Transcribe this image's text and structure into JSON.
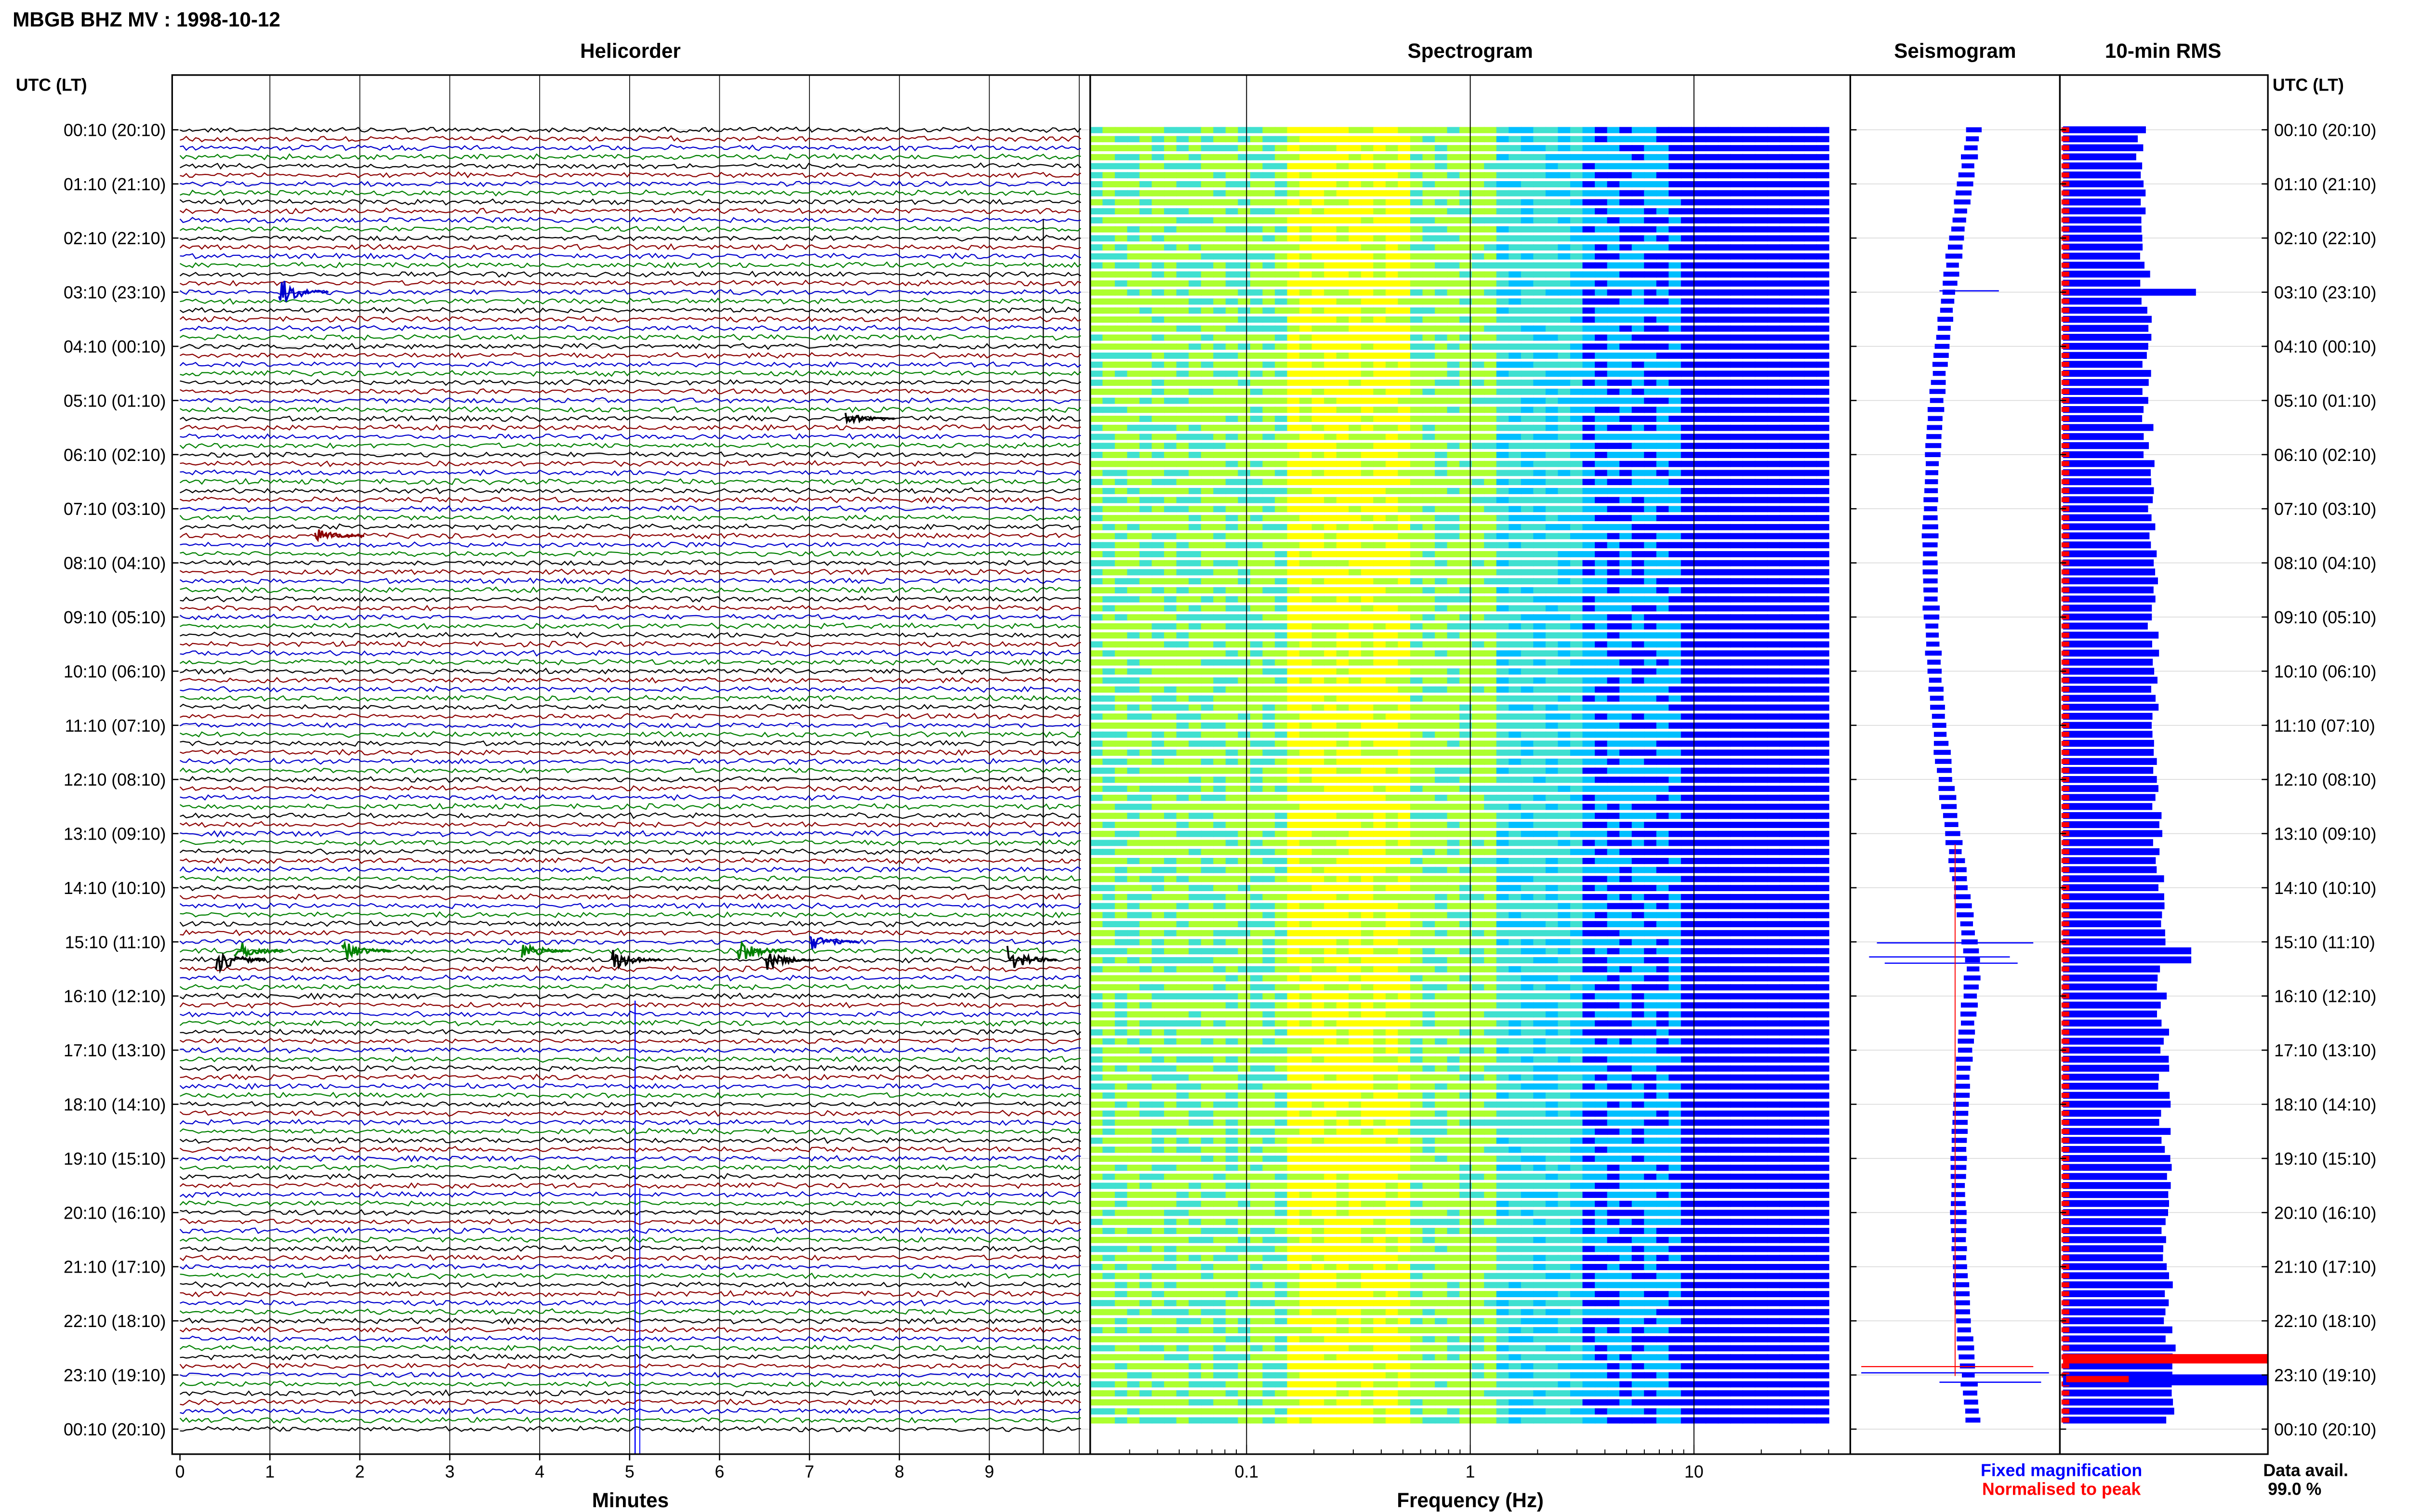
{
  "title": "MBGB BHZ MV : 1998-10-12",
  "colors": {
    "trace_cycle": [
      "#000000",
      "#8b0000",
      "#0000cd",
      "#008000"
    ],
    "fixed": "#0000ff",
    "normalised": "#ff0000"
  },
  "chart_data": [
    {
      "type": "line",
      "panel": "helicorder",
      "title": "Helicorder",
      "xlabel": "Minutes",
      "ylabel": "UTC (LT)",
      "xlim": [
        0,
        10
      ],
      "x_ticks": [
        "0",
        "1",
        "2",
        "3",
        "4",
        "5",
        "6",
        "7",
        "8",
        "9"
      ],
      "y_ticks": [
        "00:10 (20:10)",
        "01:10 (21:10)",
        "02:10 (22:10)",
        "03:10 (23:10)",
        "04:10 (00:10)",
        "05:10 (01:10)",
        "06:10 (02:10)",
        "07:10 (03:10)",
        "08:10 (04:10)",
        "09:10 (05:10)",
        "10:10 (06:10)",
        "11:10 (07:10)",
        "12:10 (08:10)",
        "13:10 (09:10)",
        "14:10 (10:10)",
        "15:10 (11:10)",
        "16:10 (12:10)",
        "17:10 (13:10)",
        "18:10 (14:10)",
        "19:10 (15:10)",
        "20:10 (16:10)",
        "21:10 (17:10)",
        "22:10 (18:10)",
        "23:10 (19:10)",
        "00:10 (20:10)"
      ],
      "lines_per_hour": 6,
      "events": [
        {
          "time": "03:10",
          "minute": 1.1,
          "amplitude": 3.5
        },
        {
          "time": "05:30",
          "minute": 7.4,
          "amplitude": 1.5
        },
        {
          "time": "07:40",
          "minute": 1.5,
          "amplitude": 1.8
        },
        {
          "time": "15:10",
          "minute": 7.0,
          "amplitude": 2.0
        },
        {
          "time": "15:20",
          "minute": 0.6,
          "amplitude": 3.0
        },
        {
          "time": "15:20",
          "minute": 1.8,
          "amplitude": 2.5
        },
        {
          "time": "15:20",
          "minute": 3.8,
          "amplitude": 2.0
        },
        {
          "time": "15:20",
          "minute": 6.2,
          "amplitude": 3.0
        },
        {
          "time": "15:30",
          "minute": 0.4,
          "amplitude": 3.0
        },
        {
          "time": "15:30",
          "minute": 4.8,
          "amplitude": 2.5
        },
        {
          "time": "15:30",
          "minute": 6.5,
          "amplitude": 2.5
        },
        {
          "time": "15:30",
          "minute": 9.2,
          "amplitude": 3.0
        }
      ]
    },
    {
      "type": "heatmap",
      "panel": "spectrogram",
      "title": "Spectrogram",
      "xlabel": "Frequency (Hz)",
      "x_scale": "log",
      "xlim": [
        0.02,
        50
      ],
      "x_tick_labels": [
        "0.1",
        "1",
        "10"
      ],
      "colormap": [
        "#00007f",
        "#0000ff",
        "#00bfff",
        "#40e0d0",
        "#adff2f",
        "#ffff00"
      ]
    },
    {
      "type": "line",
      "panel": "seismogram",
      "title": "Seismogram",
      "legend": [
        {
          "label": "Fixed magnification",
          "color": "#0000ff"
        },
        {
          "label": "Normalised to peak",
          "color": "#ff0000"
        }
      ]
    },
    {
      "type": "bar",
      "panel": "rms",
      "title": "10-min RMS",
      "orientation": "horizontal",
      "ylabel": "UTC (LT)",
      "data_availability_label": "Data avail.",
      "data_availability_value": "99.0 %"
    }
  ]
}
